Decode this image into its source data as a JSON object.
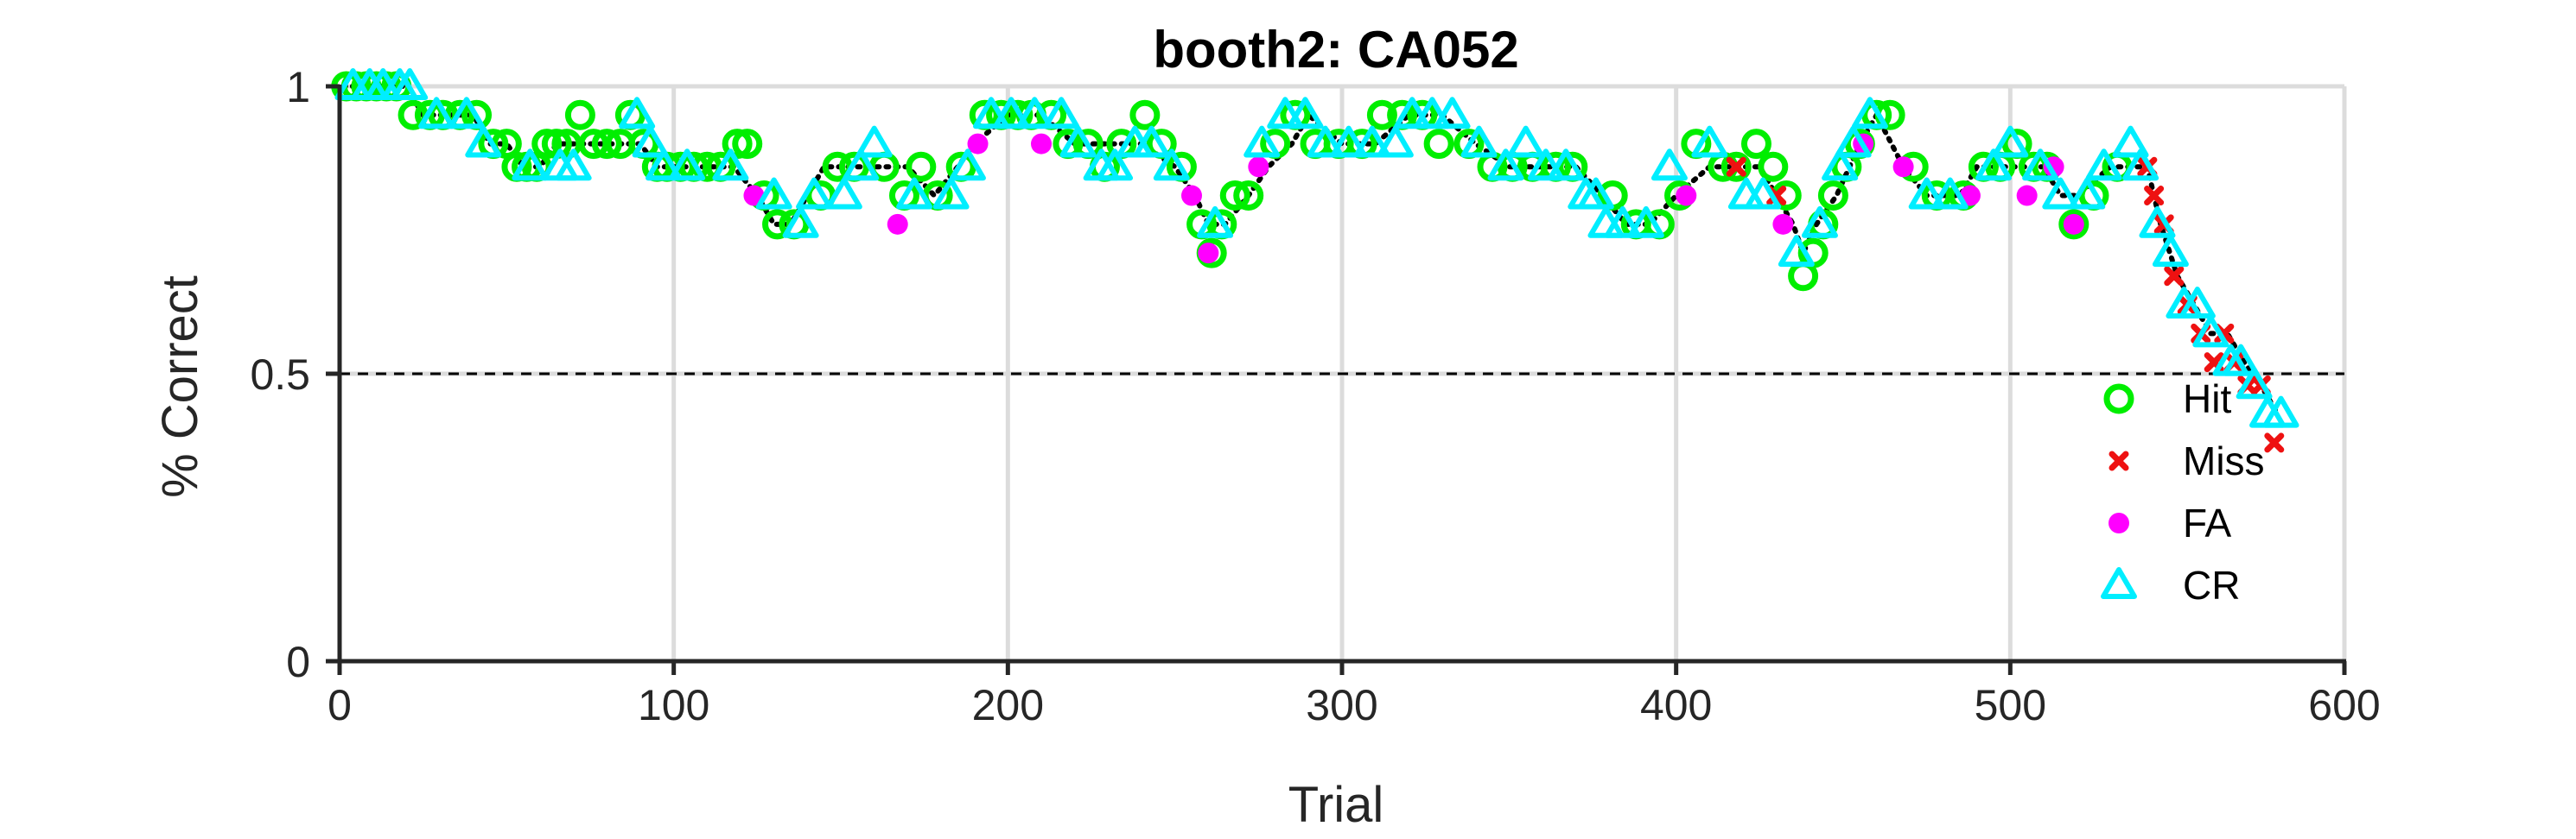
{
  "chart_data": {
    "type": "scatter",
    "title": "booth2: CA052",
    "xlabel": "Trial",
    "ylabel": "% Correct",
    "xlim": [
      0,
      600
    ],
    "ylim": [
      0,
      1
    ],
    "xticks": [
      0,
      100,
      200,
      300,
      400,
      500,
      600
    ],
    "xtick_labels": [
      "0",
      "100",
      "200",
      "300",
      "400",
      "500",
      "600"
    ],
    "yticks": [
      0,
      0.5,
      1
    ],
    "ytick_labels": [
      "0",
      "0.5",
      "1"
    ],
    "grid": true,
    "chance_line": 0.5,
    "legend_position": "lower-right",
    "curve": {
      "x": [
        1,
        10,
        20,
        25,
        30,
        40,
        45,
        50,
        55,
        60,
        65,
        70,
        75,
        80,
        85,
        90,
        95,
        100,
        110,
        118,
        125,
        130,
        135,
        140,
        145,
        150,
        160,
        170,
        178,
        185,
        190,
        200,
        210,
        220,
        230,
        240,
        250,
        256,
        260,
        265,
        272,
        278,
        285,
        290,
        300,
        310,
        320,
        330,
        340,
        350,
        360,
        370,
        378,
        385,
        392,
        400,
        410,
        420,
        425,
        430,
        435,
        438,
        442,
        448,
        455,
        460,
        468,
        475,
        485,
        490,
        500,
        510,
        515,
        520,
        530,
        538,
        541,
        545,
        550,
        555,
        560,
        565,
        570,
        575,
        580
      ],
      "y": [
        1,
        1,
        1,
        0.95,
        0.95,
        0.95,
        0.9,
        0.9,
        0.86,
        0.86,
        0.9,
        0.9,
        0.9,
        0.9,
        0.9,
        0.9,
        0.86,
        0.86,
        0.86,
        0.86,
        0.81,
        0.76,
        0.76,
        0.81,
        0.86,
        0.86,
        0.86,
        0.86,
        0.81,
        0.86,
        0.9,
        0.95,
        0.95,
        0.9,
        0.9,
        0.9,
        0.86,
        0.81,
        0.76,
        0.76,
        0.81,
        0.86,
        0.9,
        0.95,
        0.9,
        0.9,
        0.95,
        0.95,
        0.9,
        0.86,
        0.86,
        0.86,
        0.81,
        0.76,
        0.76,
        0.81,
        0.86,
        0.86,
        0.86,
        0.81,
        0.76,
        0.71,
        0.76,
        0.81,
        0.9,
        0.95,
        0.86,
        0.81,
        0.81,
        0.86,
        0.86,
        0.86,
        0.81,
        0.81,
        0.86,
        0.86,
        0.86,
        0.76,
        0.67,
        0.62,
        0.57,
        0.57,
        0.52,
        0.48,
        0.43
      ],
      "color": "#000000"
    },
    "series": [
      {
        "name": "Hit",
        "marker": "circle-open",
        "color": "#00ee00",
        "x": [
          2,
          5,
          8,
          11,
          14,
          17,
          22,
          27,
          31,
          36,
          41,
          46,
          50,
          53,
          56,
          59,
          62,
          65,
          68,
          72,
          76,
          80,
          84,
          87,
          91,
          95,
          98,
          102,
          106,
          110,
          114,
          119,
          122,
          127,
          131,
          136,
          144,
          149,
          154,
          163,
          169,
          174,
          179,
          186,
          193,
          198,
          203,
          207,
          213,
          218,
          224,
          229,
          234,
          241,
          246,
          252,
          258,
          261,
          264,
          268,
          272,
          280,
          286,
          292,
          299,
          306,
          312,
          318,
          324,
          329,
          338,
          345,
          351,
          357,
          364,
          369,
          381,
          388,
          395,
          401,
          406,
          414,
          418,
          424,
          429,
          433,
          438,
          441,
          444,
          447,
          451,
          455,
          460,
          464,
          471,
          478,
          486,
          492,
          497,
          502,
          507,
          511,
          519,
          525,
          532
        ],
        "y": [
          1,
          1,
          1,
          1,
          1,
          1,
          0.95,
          0.95,
          0.95,
          0.95,
          0.95,
          0.9,
          0.9,
          0.86,
          0.86,
          0.86,
          0.9,
          0.9,
          0.9,
          0.95,
          0.9,
          0.9,
          0.9,
          0.95,
          0.9,
          0.86,
          0.86,
          0.86,
          0.86,
          0.86,
          0.86,
          0.9,
          0.9,
          0.81,
          0.76,
          0.76,
          0.81,
          0.86,
          0.86,
          0.86,
          0.81,
          0.86,
          0.81,
          0.86,
          0.95,
          0.95,
          0.95,
          0.95,
          0.95,
          0.9,
          0.9,
          0.86,
          0.9,
          0.95,
          0.9,
          0.86,
          0.76,
          0.71,
          0.76,
          0.81,
          0.81,
          0.9,
          0.95,
          0.9,
          0.9,
          0.9,
          0.95,
          0.95,
          0.95,
          0.9,
          0.9,
          0.86,
          0.86,
          0.86,
          0.86,
          0.86,
          0.81,
          0.76,
          0.76,
          0.81,
          0.9,
          0.86,
          0.86,
          0.9,
          0.86,
          0.81,
          0.67,
          0.71,
          0.76,
          0.81,
          0.86,
          0.9,
          0.95,
          0.95,
          0.86,
          0.81,
          0.81,
          0.86,
          0.86,
          0.9,
          0.86,
          0.86,
          0.76,
          0.81,
          0.86
        ]
      },
      {
        "name": "Miss",
        "marker": "x",
        "color": "#ee1111",
        "x": [
          418,
          430,
          541,
          543,
          546,
          549,
          553,
          557,
          561,
          564,
          567,
          571,
          575,
          579
        ],
        "y": [
          0.86,
          0.81,
          0.86,
          0.81,
          0.76,
          0.67,
          0.62,
          0.57,
          0.52,
          0.57,
          0.52,
          0.48,
          0.48,
          0.38
        ]
      },
      {
        "name": "FA",
        "marker": "dot",
        "color": "#ff00ff",
        "x": [
          124,
          167,
          191,
          210,
          255,
          260,
          275,
          403,
          432,
          456,
          468,
          488,
          505,
          513,
          519
        ],
        "y": [
          0.81,
          0.76,
          0.9,
          0.9,
          0.81,
          0.71,
          0.86,
          0.81,
          0.76,
          0.9,
          0.86,
          0.81,
          0.81,
          0.86,
          0.76
        ]
      },
      {
        "name": "CR",
        "marker": "triangle-open",
        "color": "#00eeff",
        "x": [
          4,
          9,
          13,
          18,
          21,
          29,
          38,
          43,
          57,
          66,
          70,
          89,
          93,
          97,
          104,
          117,
          130,
          138,
          142,
          151,
          156,
          160,
          172,
          183,
          188,
          195,
          201,
          208,
          216,
          221,
          228,
          232,
          238,
          243,
          249,
          262,
          276,
          283,
          289,
          295,
          302,
          309,
          316,
          321,
          327,
          333,
          341,
          349,
          355,
          361,
          367,
          373,
          376,
          379,
          384,
          391,
          398,
          410,
          421,
          426,
          436,
          443,
          449,
          453,
          458,
          475,
          482,
          495,
          500,
          509,
          515,
          523,
          528,
          536,
          539,
          544,
          548,
          552,
          556,
          560,
          566,
          569,
          573,
          577,
          581
        ],
        "y": [
          1,
          1,
          1,
          1,
          1,
          0.95,
          0.95,
          0.9,
          0.86,
          0.86,
          0.86,
          0.95,
          0.9,
          0.86,
          0.86,
          0.86,
          0.81,
          0.76,
          0.81,
          0.81,
          0.86,
          0.9,
          0.81,
          0.81,
          0.86,
          0.95,
          0.95,
          0.95,
          0.95,
          0.9,
          0.86,
          0.86,
          0.9,
          0.9,
          0.86,
          0.76,
          0.9,
          0.95,
          0.95,
          0.9,
          0.9,
          0.9,
          0.9,
          0.95,
          0.95,
          0.95,
          0.9,
          0.86,
          0.9,
          0.86,
          0.86,
          0.81,
          0.81,
          0.76,
          0.76,
          0.76,
          0.86,
          0.9,
          0.81,
          0.81,
          0.71,
          0.76,
          0.86,
          0.9,
          0.95,
          0.81,
          0.81,
          0.86,
          0.9,
          0.86,
          0.81,
          0.81,
          0.86,
          0.9,
          0.86,
          0.76,
          0.71,
          0.62,
          0.62,
          0.57,
          0.52,
          0.52,
          0.48,
          0.43,
          0.43
        ]
      }
    ]
  }
}
